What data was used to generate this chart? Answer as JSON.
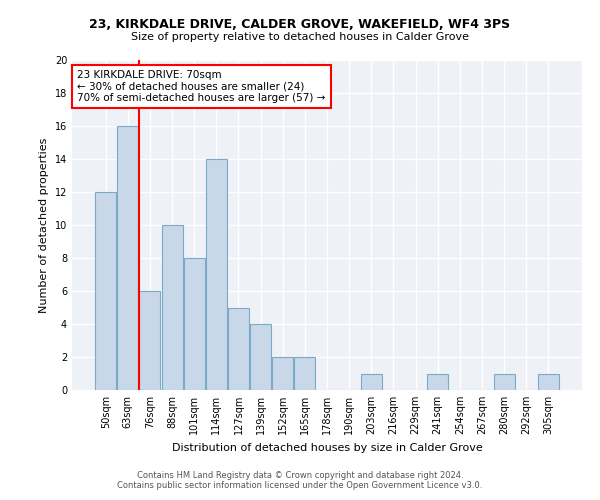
{
  "title1": "23, KIRKDALE DRIVE, CALDER GROVE, WAKEFIELD, WF4 3PS",
  "title2": "Size of property relative to detached houses in Calder Grove",
  "xlabel": "Distribution of detached houses by size in Calder Grove",
  "ylabel": "Number of detached properties",
  "categories": [
    "50sqm",
    "63sqm",
    "76sqm",
    "88sqm",
    "101sqm",
    "114sqm",
    "127sqm",
    "139sqm",
    "152sqm",
    "165sqm",
    "178sqm",
    "190sqm",
    "203sqm",
    "216sqm",
    "229sqm",
    "241sqm",
    "254sqm",
    "267sqm",
    "280sqm",
    "292sqm",
    "305sqm"
  ],
  "values": [
    12,
    16,
    6,
    10,
    8,
    14,
    5,
    4,
    2,
    2,
    0,
    0,
    1,
    0,
    0,
    1,
    0,
    0,
    1,
    0,
    1
  ],
  "bar_color": "#c8d8e8",
  "bar_edge_color": "#7aaac8",
  "red_line_x": 1.5,
  "annotation_text_line1": "23 KIRKDALE DRIVE: 70sqm",
  "annotation_text_line2": "← 30% of detached houses are smaller (24)",
  "annotation_text_line3": "70% of semi-detached houses are larger (57) →",
  "ylim": [
    0,
    20
  ],
  "yticks": [
    0,
    2,
    4,
    6,
    8,
    10,
    12,
    14,
    16,
    18,
    20
  ],
  "footer1": "Contains HM Land Registry data © Crown copyright and database right 2024.",
  "footer2": "Contains public sector information licensed under the Open Government Licence v3.0.",
  "bg_color": "#eef2f7"
}
